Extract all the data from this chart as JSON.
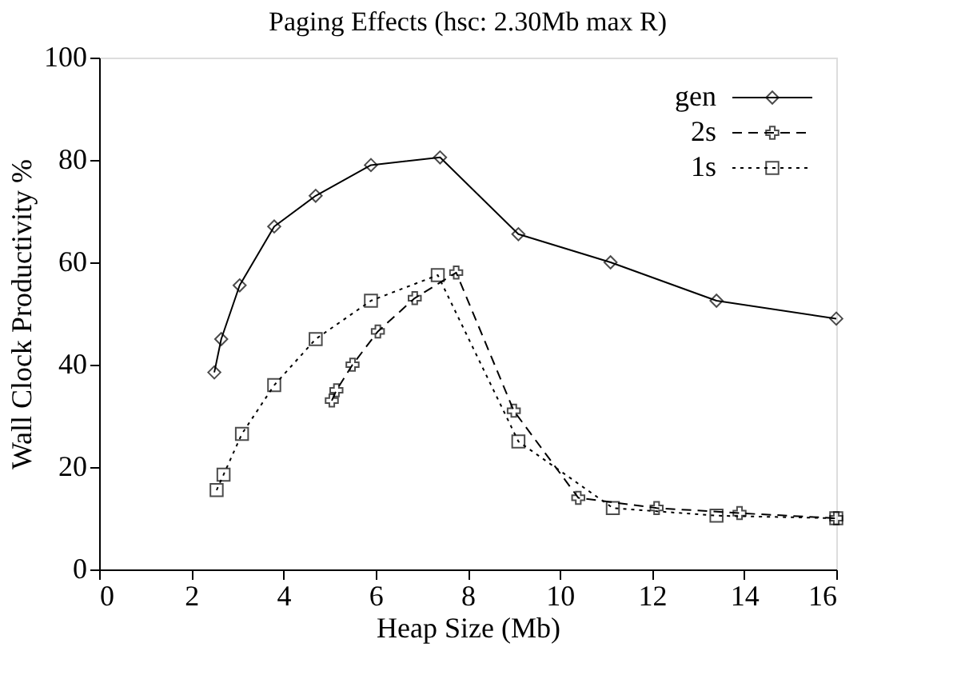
{
  "chart_data": {
    "type": "line",
    "title": "Paging Effects    (hsc: 2.30Mb max R)",
    "xlabel": "Heap Size (Mb)",
    "ylabel": "Wall Clock Productivity %",
    "xlim": [
      0,
      16
    ],
    "xticks": [
      0,
      2,
      4,
      6,
      8,
      10,
      12,
      14,
      16
    ],
    "ylim": [
      0,
      100
    ],
    "yticks": [
      0,
      20,
      40,
      60,
      80,
      100
    ],
    "grid": false,
    "legend": "top right",
    "series": [
      {
        "name": "gen",
        "color": "#000000",
        "marker": "diamond",
        "line_style": "solid",
        "x": [
          2.5,
          2.65,
          3.05,
          3.8,
          4.7,
          5.9,
          7.4,
          9.1,
          11.1,
          13.4,
          16
        ],
        "values": [
          38.5,
          45,
          55.5,
          67,
          73,
          79,
          80.5,
          65.5,
          60,
          52.5,
          49
        ]
      },
      {
        "name": "2s",
        "color": "#000000",
        "marker": "cross",
        "line_style": "dashed",
        "x": [
          5.05,
          5.15,
          5.5,
          6.05,
          6.85,
          7.75,
          9.0,
          10.4,
          12.1,
          13.9,
          16
        ],
        "values": [
          33,
          35,
          40,
          46.5,
          53,
          58,
          31,
          14,
          12,
          11,
          10
        ]
      },
      {
        "name": "1s",
        "color": "#000000",
        "marker": "square",
        "line_style": "dotted",
        "x": [
          2.55,
          2.7,
          3.1,
          3.8,
          4.7,
          5.9,
          7.35,
          9.1,
          11.15,
          13.4,
          16
        ],
        "values": [
          15.5,
          18.5,
          26.5,
          36,
          45,
          52.5,
          57.5,
          25,
          12,
          10.5,
          10
        ]
      }
    ]
  }
}
